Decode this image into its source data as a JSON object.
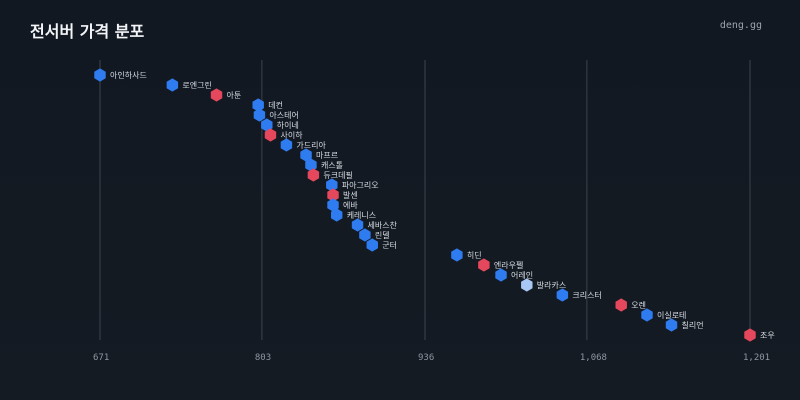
{
  "header": {
    "title": "전서버 가격 분포",
    "brand": "deng.gg"
  },
  "colors": {
    "background": "#131922",
    "grid": "#3b434d",
    "blue": "#2f7cf0",
    "red": "#e5485c",
    "light_blue": "#a8c7f5"
  },
  "chart_data": {
    "type": "scatter",
    "title": "전서버 가격 분포",
    "xlabel": "",
    "ylabel": "",
    "xlim": [
      671,
      1201
    ],
    "xticks": [
      671,
      803,
      936,
      1068,
      1201
    ],
    "xtick_labels": [
      "671",
      "803",
      "936",
      "1,068",
      "1,201"
    ],
    "grid": true,
    "points": [
      {
        "label": "아인하사드",
        "x": 671,
        "color": "blue"
      },
      {
        "label": "로엔그린",
        "x": 730,
        "color": "blue"
      },
      {
        "label": "아툰",
        "x": 766,
        "color": "red"
      },
      {
        "label": "데컨",
        "x": 800,
        "color": "blue"
      },
      {
        "label": "아스테어",
        "x": 801,
        "color": "blue"
      },
      {
        "label": "하이네",
        "x": 807,
        "color": "blue"
      },
      {
        "label": "사이하",
        "x": 810,
        "color": "red"
      },
      {
        "label": "가드리아",
        "x": 823,
        "color": "blue"
      },
      {
        "label": "마프르",
        "x": 839,
        "color": "blue"
      },
      {
        "label": "캐스톨",
        "x": 843,
        "color": "blue"
      },
      {
        "label": "듀크데필",
        "x": 845,
        "color": "red"
      },
      {
        "label": "파아그리오",
        "x": 860,
        "color": "blue"
      },
      {
        "label": "발센",
        "x": 861,
        "color": "red"
      },
      {
        "label": "에바",
        "x": 861,
        "color": "blue"
      },
      {
        "label": "케레니스",
        "x": 864,
        "color": "blue"
      },
      {
        "label": "세바스찬",
        "x": 881,
        "color": "blue"
      },
      {
        "label": "린델",
        "x": 887,
        "color": "blue"
      },
      {
        "label": "군터",
        "x": 893,
        "color": "blue"
      },
      {
        "label": "히딘",
        "x": 962,
        "color": "blue"
      },
      {
        "label": "엔라우펠",
        "x": 984,
        "color": "red"
      },
      {
        "label": "어레인",
        "x": 998,
        "color": "blue"
      },
      {
        "label": "발라카스",
        "x": 1019,
        "color": "light_blue"
      },
      {
        "label": "크리스터",
        "x": 1048,
        "color": "blue"
      },
      {
        "label": "오렌",
        "x": 1096,
        "color": "red"
      },
      {
        "label": "이실로테",
        "x": 1117,
        "color": "blue"
      },
      {
        "label": "칠리언",
        "x": 1137,
        "color": "blue"
      },
      {
        "label": "조우",
        "x": 1201,
        "color": "red"
      }
    ]
  }
}
